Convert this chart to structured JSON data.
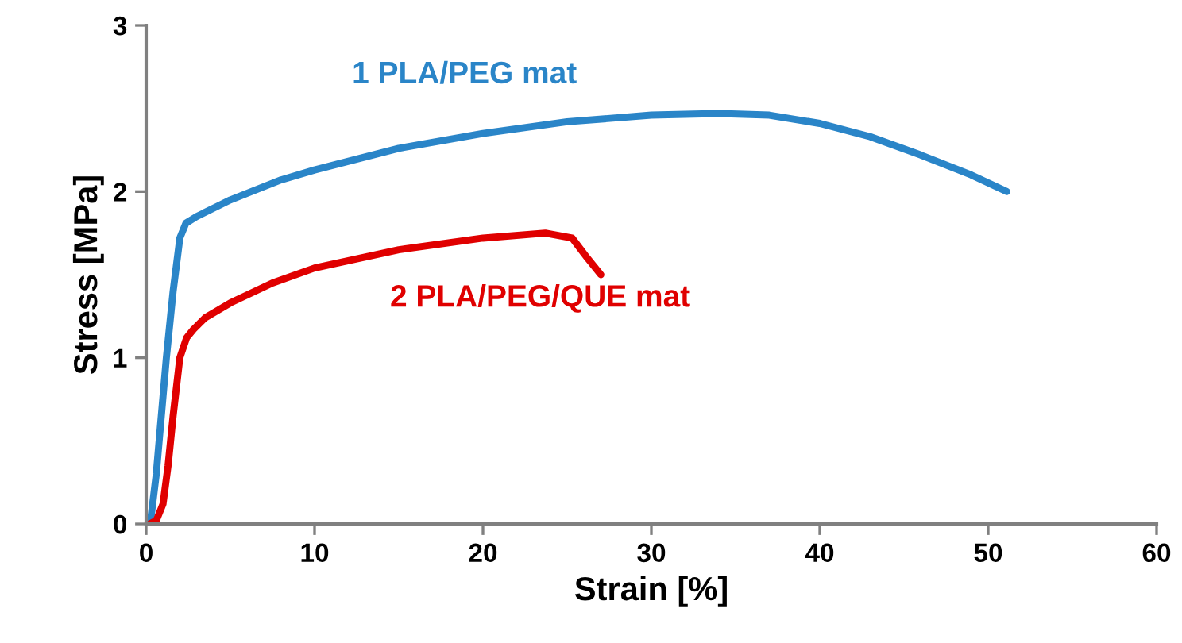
{
  "chart_data": {
    "type": "line",
    "xlabel": "Strain [%]",
    "ylabel": "Stress [MPa]",
    "xlim": [
      0,
      60
    ],
    "xticks": [
      0,
      10,
      20,
      30,
      40,
      50,
      60
    ],
    "ylim": [
      0,
      3
    ],
    "yticks": [
      0,
      1,
      2,
      3
    ],
    "grid": false,
    "legend": false,
    "marker": "none",
    "line_style": "solid",
    "series": [
      {
        "name": "1 PLA/PEG mat",
        "color": "#2a85c8",
        "x": [
          0,
          0.3,
          0.6,
          0.9,
          1.2,
          1.6,
          2.0,
          2.36,
          3,
          5,
          8,
          10,
          15,
          20,
          25,
          30,
          34,
          37,
          40,
          43,
          46,
          49,
          51.1
        ],
        "values": [
          0,
          0.05,
          0.3,
          0.65,
          1.0,
          1.4,
          1.72,
          1.81,
          1.85,
          1.95,
          2.07,
          2.13,
          2.26,
          2.35,
          2.42,
          2.46,
          2.47,
          2.46,
          2.41,
          2.33,
          2.22,
          2.1,
          2.0
        ]
      },
      {
        "name": "2 PLA/PEG/QUE mat",
        "color": "#e00000",
        "x": [
          0.2,
          0.6,
          1.0,
          1.3,
          1.6,
          2.0,
          2.4,
          2.8,
          3.5,
          5,
          7.5,
          10,
          15,
          20,
          23.7,
          25.3,
          26.2,
          27.0
        ],
        "values": [
          0,
          0.02,
          0.12,
          0.35,
          0.65,
          1.0,
          1.12,
          1.17,
          1.24,
          1.33,
          1.45,
          1.54,
          1.65,
          1.72,
          1.75,
          1.72,
          1.6,
          1.5
        ]
      }
    ]
  }
}
